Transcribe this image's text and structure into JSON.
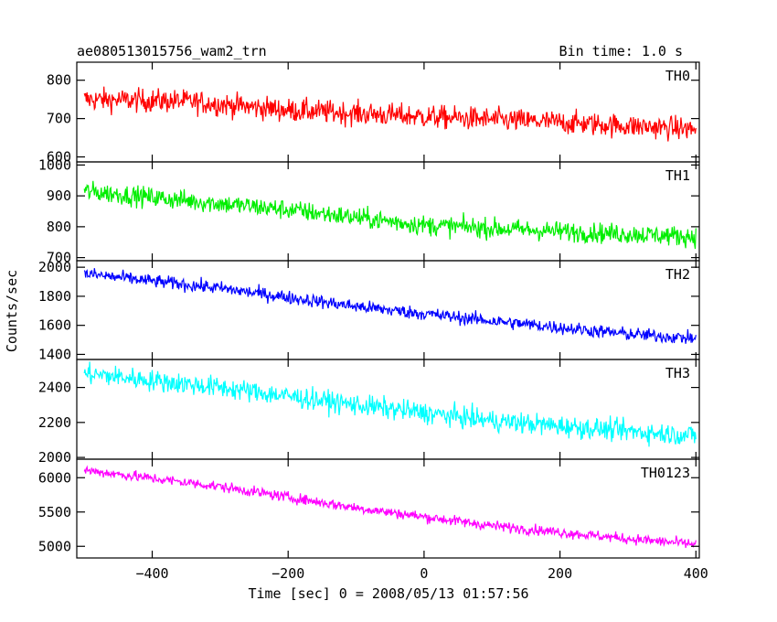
{
  "chart_data": {
    "type": "line",
    "title": "ae080513015756_wam2_trn",
    "bin_time_label": "Bin time: 1.0 s",
    "xlabel": "Time [sec] 0 = 2008/05/13 01:57:56",
    "ylabel": "Counts/sec",
    "xlim": [
      -511,
      405
    ],
    "x_ticks": [
      -400,
      -200,
      0,
      200,
      400
    ],
    "grid": false,
    "panels": [
      {
        "name": "TH0",
        "color": "#ff0000",
        "ylim": [
          587,
          847
        ],
        "y_ticks": [
          600,
          700,
          800
        ],
        "x_range": [
          -500,
          400
        ],
        "trend": [
          [
            -500,
            750
          ],
          [
            -350,
            745
          ],
          [
            -200,
            722
          ],
          [
            0,
            705
          ],
          [
            200,
            690
          ],
          [
            400,
            672
          ]
        ],
        "noise": 30
      },
      {
        "name": "TH1",
        "color": "#00ee00",
        "ylim": [
          690,
          1010
        ],
        "y_ticks": [
          700,
          800,
          900,
          1000
        ],
        "x_range": [
          -500,
          400
        ],
        "trend": [
          [
            -500,
            915
          ],
          [
            -350,
            885
          ],
          [
            -200,
            855
          ],
          [
            0,
            805
          ],
          [
            200,
            785
          ],
          [
            400,
            768
          ]
        ],
        "noise": 32
      },
      {
        "name": "TH2",
        "color": "#0000ff",
        "ylim": [
          1365,
          2045
        ],
        "y_ticks": [
          1400,
          1600,
          1800,
          2000
        ],
        "x_range": [
          -500,
          400
        ],
        "trend": [
          [
            -500,
            1955
          ],
          [
            -300,
            1855
          ],
          [
            -100,
            1730
          ],
          [
            100,
            1630
          ],
          [
            300,
            1540
          ],
          [
            400,
            1510
          ]
        ],
        "noise": 45
      },
      {
        "name": "TH3",
        "color": "#00ffff",
        "ylim": [
          1990,
          2560
        ],
        "y_ticks": [
          2000,
          2200,
          2400
        ],
        "x_range": [
          -500,
          400
        ],
        "trend": [
          [
            -500,
            2480
          ],
          [
            -300,
            2400
          ],
          [
            -100,
            2300
          ],
          [
            100,
            2210
          ],
          [
            300,
            2150
          ],
          [
            400,
            2125
          ]
        ],
        "noise": 60
      },
      {
        "name": "TH0123",
        "color": "#ff00ff",
        "ylim": [
          4830,
          6270
        ],
        "y_ticks": [
          5000,
          5500,
          6000
        ],
        "x_range": [
          -500,
          400
        ],
        "trend": [
          [
            -500,
            6110
          ],
          [
            -300,
            5870
          ],
          [
            -100,
            5560
          ],
          [
            100,
            5300
          ],
          [
            300,
            5110
          ],
          [
            400,
            5030
          ]
        ],
        "noise": 75
      }
    ]
  }
}
